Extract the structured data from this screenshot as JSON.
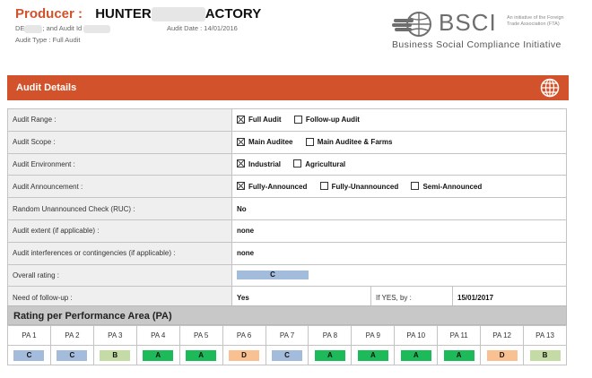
{
  "header": {
    "producer_label": "Producer :",
    "producer_name_start": "HUNTER",
    "producer_name_end": "ACTORY",
    "meta_prefix": "DE",
    "meta_middle": "; and Audit Id",
    "audit_type": "Audit Type : Full Audit",
    "audit_date": "Audit Date : 14/01/2016"
  },
  "logo": {
    "brand": "BSCI",
    "initiative_note": "An initiative of the Foreign Trade Association (FTA)",
    "full_name": "Business Social Compliance Initiative"
  },
  "section_title": "Audit Details",
  "details": {
    "audit_range": {
      "label": "Audit Range :",
      "options": [
        {
          "text": "Full Audit",
          "checked": true
        },
        {
          "text": "Follow-up Audit",
          "checked": false
        }
      ]
    },
    "audit_scope": {
      "label": "Audit Scope :",
      "options": [
        {
          "text": "Main Auditee",
          "checked": true
        },
        {
          "text": "Main Auditee & Farms",
          "checked": false
        }
      ]
    },
    "audit_environment": {
      "label": "Audit Environment :",
      "options": [
        {
          "text": "Industrial",
          "checked": true
        },
        {
          "text": "Agricultural",
          "checked": false
        }
      ]
    },
    "audit_announcement": {
      "label": "Audit Announcement :",
      "options": [
        {
          "text": "Fully-Announced",
          "checked": true
        },
        {
          "text": "Fully-Unannounced",
          "checked": false
        },
        {
          "text": "Semi-Announced",
          "checked": false
        }
      ]
    },
    "ruc": {
      "label": "Random Unannounced Check (RUC) :",
      "value": "No"
    },
    "extent": {
      "label": "Audit extent (if applicable) :",
      "value": "none"
    },
    "interferences": {
      "label": "Audit interferences or contingencies (if applicable) :",
      "value": "none"
    },
    "overall": {
      "label": "Overall rating :",
      "value": "C"
    },
    "followup": {
      "label": "Need of follow-up :",
      "value": "Yes",
      "if_yes_label": "If YES, by :",
      "if_yes_date": "15/01/2017"
    }
  },
  "pa_section": {
    "title": "Rating per Performance Area (PA)",
    "areas": [
      {
        "name": "PA 1",
        "rating": "C",
        "color": "#a3bcdc"
      },
      {
        "name": "PA 2",
        "rating": "C",
        "color": "#a3bcdc"
      },
      {
        "name": "PA 3",
        "rating": "B",
        "color": "#c4dba6"
      },
      {
        "name": "PA 4",
        "rating": "A",
        "color": "#1dba5a"
      },
      {
        "name": "PA 5",
        "rating": "A",
        "color": "#1dba5a"
      },
      {
        "name": "PA 6",
        "rating": "D",
        "color": "#f9c191"
      },
      {
        "name": "PA 7",
        "rating": "C",
        "color": "#a3bcdc"
      },
      {
        "name": "PA 8",
        "rating": "A",
        "color": "#1dba5a"
      },
      {
        "name": "PA 9",
        "rating": "A",
        "color": "#1dba5a"
      },
      {
        "name": "PA 10",
        "rating": "A",
        "color": "#1dba5a"
      },
      {
        "name": "PA 11",
        "rating": "A",
        "color": "#1dba5a"
      },
      {
        "name": "PA 12",
        "rating": "D",
        "color": "#f9c191"
      },
      {
        "name": "PA 13",
        "rating": "B",
        "color": "#c4dba6"
      }
    ]
  }
}
